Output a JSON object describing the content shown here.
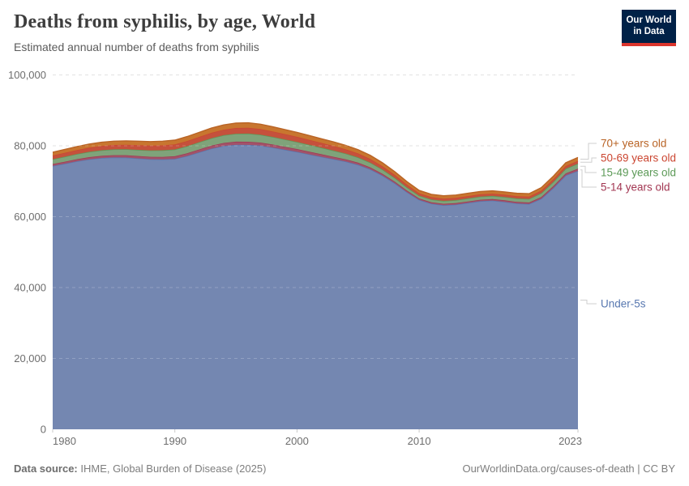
{
  "header": {
    "title": "Deaths from syphilis, by age, World",
    "subtitle": "Estimated annual number of deaths from syphilis",
    "logo_line1": "Our World",
    "logo_line2": "in Data",
    "logo_bg": "#002147",
    "logo_bar": "#dc352d"
  },
  "footer": {
    "source_label": "Data source:",
    "source_text": " IHME, Global Burden of Disease (2025)",
    "credit": "OurWorldinData.org/causes-of-death | CC BY"
  },
  "chart_data": {
    "type": "area",
    "stacked": true,
    "title": "Deaths from syphilis, by age, World",
    "subtitle": "Estimated annual number of deaths from syphilis",
    "xlabel": "",
    "ylabel": "",
    "xlim": [
      1980,
      2023
    ],
    "ylim": [
      0,
      100000
    ],
    "grid": "horizontal-dashed",
    "legend_position": "right-direct-labels",
    "x_label_ticks": [
      1980,
      1990,
      2000,
      2010,
      2023
    ],
    "y_ticks": [
      0,
      20000,
      40000,
      60000,
      80000,
      100000
    ],
    "y_tick_labels": [
      "0",
      "20,000",
      "40,000",
      "60,000",
      "80,000",
      "100,000"
    ],
    "years": [
      1980,
      1981,
      1982,
      1983,
      1984,
      1985,
      1986,
      1987,
      1988,
      1989,
      1990,
      1991,
      1992,
      1993,
      1994,
      1995,
      1996,
      1997,
      1998,
      1999,
      2000,
      2001,
      2002,
      2003,
      2004,
      2005,
      2006,
      2007,
      2008,
      2009,
      2010,
      2011,
      2012,
      2013,
      2014,
      2015,
      2016,
      2017,
      2018,
      2019,
      2020,
      2021,
      2022,
      2023
    ],
    "series": [
      {
        "name": "Under-5s",
        "color": "#7487b1",
        "label_color": "#5878b0",
        "values": [
          74300,
          74960,
          75630,
          76190,
          76550,
          76710,
          76680,
          76440,
          76200,
          76150,
          76290,
          77130,
          78170,
          79210,
          79960,
          80300,
          80250,
          80040,
          79520,
          78910,
          78290,
          77580,
          76890,
          76230,
          75550,
          74660,
          73380,
          71590,
          69420,
          66930,
          64760,
          63650,
          63230,
          63410,
          63890,
          64370,
          64540,
          64190,
          63730,
          63560,
          65050,
          68140,
          71630,
          72910
        ]
      },
      {
        "name": "5-14 years old",
        "color": "#a25269",
        "label_color": "#a23652",
        "values": [
          550,
          570,
          590,
          605,
          625,
          645,
          660,
          680,
          700,
          725,
          750,
          775,
          800,
          825,
          850,
          875,
          900,
          870,
          840,
          815,
          785,
          755,
          725,
          670,
          630,
          590,
          550,
          510,
          470,
          430,
          390,
          395,
          400,
          405,
          410,
          415,
          420,
          430,
          440,
          450,
          490,
          535,
          575,
          620
        ]
      },
      {
        "name": "15-49 years old",
        "color": "#7fa37a",
        "label_color": "#5c9a57",
        "values": [
          1350,
          1405,
          1460,
          1520,
          1575,
          1630,
          1690,
          1745,
          1800,
          1860,
          1925,
          1990,
          2050,
          2115,
          2175,
          2240,
          2300,
          2230,
          2160,
          2090,
          2020,
          1950,
          1850,
          1750,
          1615,
          1480,
          1345,
          1210,
          1075,
          940,
          800,
          815,
          830,
          850,
          865,
          880,
          900,
          930,
          965,
          1000,
          1110,
          1220,
          1330,
          1440
        ]
      },
      {
        "name": "50-69 years old",
        "color": "#c5513c",
        "label_color": "#cb4631",
        "values": [
          1050,
          1090,
          1125,
          1165,
          1200,
          1240,
          1275,
          1315,
          1350,
          1390,
          1425,
          1465,
          1500,
          1540,
          1575,
          1615,
          1650,
          1600,
          1550,
          1500,
          1450,
          1400,
          1350,
          1300,
          1210,
          1120,
          1030,
          940,
          840,
          750,
          650,
          645,
          640,
          640,
          640,
          640,
          640,
          645,
          650,
          660,
          690,
          720,
          750,
          780
        ]
      },
      {
        "name": "70+ years old",
        "color": "#c8762f",
        "label_color": "#b96426",
        "values": [
          950,
          975,
          1000,
          1025,
          1050,
          1075,
          1100,
          1125,
          1150,
          1180,
          1210,
          1245,
          1280,
          1310,
          1340,
          1370,
          1400,
          1365,
          1330,
          1290,
          1255,
          1220,
          1185,
          1150,
          1100,
          1050,
          1000,
          950,
          900,
          850,
          800,
          800,
          800,
          800,
          800,
          800,
          800,
          810,
          820,
          830,
          860,
          890,
          920,
          950
        ]
      }
    ]
  }
}
